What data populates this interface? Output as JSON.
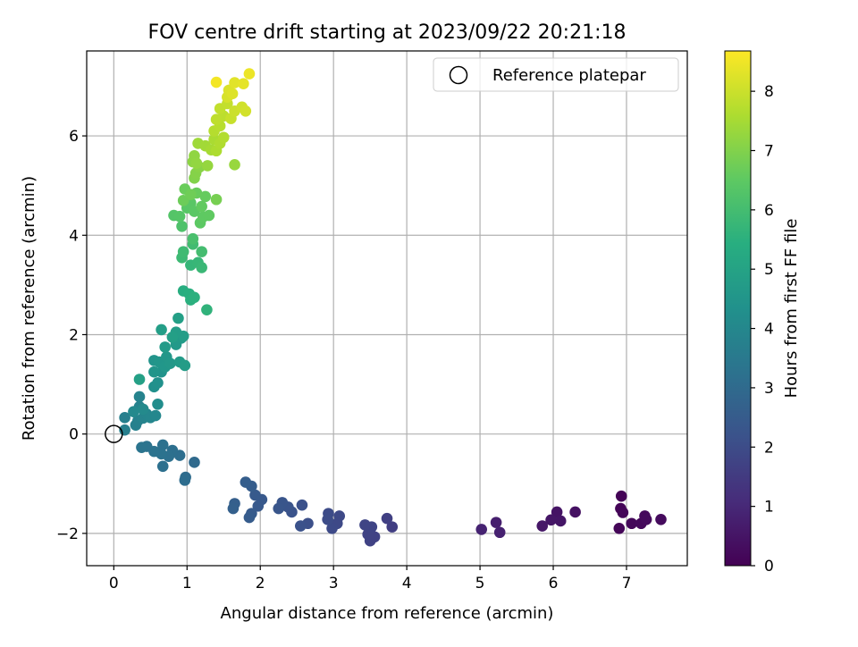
{
  "chart_data": {
    "type": "scatter",
    "title": "FOV centre drift starting at 2023/09/22 20:21:18",
    "xlabel": "Angular distance from reference (arcmin)",
    "ylabel": "Rotation from reference (arcmin)",
    "xlim": [
      -0.37,
      7.83
    ],
    "ylim": [
      -2.65,
      7.71
    ],
    "xticks": [
      0,
      1,
      2,
      3,
      4,
      5,
      6,
      7
    ],
    "yticks": [
      -2,
      0,
      2,
      4,
      6
    ],
    "xtick_labels": [
      "0",
      "1",
      "2",
      "3",
      "4",
      "5",
      "6",
      "7"
    ],
    "ytick_labels": [
      "−2",
      "0",
      "2",
      "4",
      "6"
    ],
    "grid": true,
    "legend": {
      "position": "top-right",
      "entries": [
        "Reference platepar"
      ]
    },
    "reference_point": {
      "name": "Reference platepar",
      "x": 0,
      "y": 0
    },
    "colorbar": {
      "label": "Hours from first FF file",
      "range": [
        0,
        8.68
      ],
      "ticks": [
        0,
        1,
        2,
        3,
        4,
        5,
        6,
        7,
        8
      ],
      "tick_labels": [
        "0",
        "1",
        "2",
        "3",
        "4",
        "5",
        "6",
        "7",
        "8"
      ],
      "colormap": "viridis"
    },
    "points": [
      {
        "x": 6.93,
        "y": -1.25,
        "c": 0.05
      },
      {
        "x": 6.92,
        "y": -1.5,
        "c": 0.08
      },
      {
        "x": 6.95,
        "y": -1.58,
        "c": 0.1
      },
      {
        "x": 6.9,
        "y": -1.9,
        "c": 0.12
      },
      {
        "x": 7.07,
        "y": -1.8,
        "c": 0.15
      },
      {
        "x": 7.2,
        "y": -1.8,
        "c": 0.18
      },
      {
        "x": 7.25,
        "y": -1.65,
        "c": 0.2
      },
      {
        "x": 7.27,
        "y": -1.72,
        "c": 0.22
      },
      {
        "x": 7.47,
        "y": -1.72,
        "c": 0.25
      },
      {
        "x": 6.3,
        "y": -1.57,
        "c": 0.4
      },
      {
        "x": 6.05,
        "y": -1.57,
        "c": 0.45
      },
      {
        "x": 6.1,
        "y": -1.75,
        "c": 0.5
      },
      {
        "x": 5.97,
        "y": -1.73,
        "c": 0.52
      },
      {
        "x": 5.85,
        "y": -1.85,
        "c": 0.55
      },
      {
        "x": 5.22,
        "y": -1.78,
        "c": 0.75
      },
      {
        "x": 5.27,
        "y": -1.98,
        "c": 0.8
      },
      {
        "x": 5.02,
        "y": -1.92,
        "c": 0.85
      },
      {
        "x": 3.8,
        "y": -1.87,
        "c": 1.6
      },
      {
        "x": 3.73,
        "y": -1.7,
        "c": 1.65
      },
      {
        "x": 3.56,
        "y": -2.07,
        "c": 1.7
      },
      {
        "x": 3.5,
        "y": -2.15,
        "c": 1.72
      },
      {
        "x": 3.47,
        "y": -2.02,
        "c": 1.75
      },
      {
        "x": 3.52,
        "y": -1.87,
        "c": 1.78
      },
      {
        "x": 3.43,
        "y": -1.83,
        "c": 1.8
      },
      {
        "x": 3.08,
        "y": -1.65,
        "c": 1.9
      },
      {
        "x": 3.05,
        "y": -1.8,
        "c": 1.92
      },
      {
        "x": 2.98,
        "y": -1.9,
        "c": 1.95
      },
      {
        "x": 2.93,
        "y": -1.6,
        "c": 1.97
      },
      {
        "x": 2.92,
        "y": -1.72,
        "c": 2.0
      },
      {
        "x": 2.65,
        "y": -1.8,
        "c": 2.1
      },
      {
        "x": 2.57,
        "y": -1.43,
        "c": 2.15
      },
      {
        "x": 2.55,
        "y": -1.85,
        "c": 2.18
      },
      {
        "x": 2.43,
        "y": -1.57,
        "c": 2.22
      },
      {
        "x": 2.38,
        "y": -1.47,
        "c": 2.25
      },
      {
        "x": 2.3,
        "y": -1.38,
        "c": 2.28
      },
      {
        "x": 2.25,
        "y": -1.5,
        "c": 2.3
      },
      {
        "x": 2.02,
        "y": -1.32,
        "c": 2.4
      },
      {
        "x": 1.97,
        "y": -1.45,
        "c": 2.42
      },
      {
        "x": 1.93,
        "y": -1.23,
        "c": 2.45
      },
      {
        "x": 1.88,
        "y": -1.6,
        "c": 2.48
      },
      {
        "x": 1.85,
        "y": -1.68,
        "c": 2.5
      },
      {
        "x": 1.88,
        "y": -1.05,
        "c": 2.55
      },
      {
        "x": 1.8,
        "y": -0.97,
        "c": 2.58
      },
      {
        "x": 1.65,
        "y": -1.4,
        "c": 2.62
      },
      {
        "x": 1.63,
        "y": -1.5,
        "c": 2.65
      },
      {
        "x": 1.1,
        "y": -0.57,
        "c": 3.0
      },
      {
        "x": 0.98,
        "y": -0.87,
        "c": 3.05
      },
      {
        "x": 0.97,
        "y": -0.93,
        "c": 3.08
      },
      {
        "x": 0.9,
        "y": -0.43,
        "c": 3.12
      },
      {
        "x": 0.8,
        "y": -0.33,
        "c": 3.15
      },
      {
        "x": 0.75,
        "y": -0.45,
        "c": 3.18
      },
      {
        "x": 0.67,
        "y": -0.65,
        "c": 3.2
      },
      {
        "x": 0.67,
        "y": -0.22,
        "c": 3.22
      },
      {
        "x": 0.65,
        "y": -0.4,
        "c": 3.25
      },
      {
        "x": 0.55,
        "y": -0.35,
        "c": 3.28
      },
      {
        "x": 0.45,
        "y": -0.25,
        "c": 3.3
      },
      {
        "x": 0.38,
        "y": -0.27,
        "c": 3.32
      },
      {
        "x": 0.15,
        "y": 0.08,
        "c": 3.7
      },
      {
        "x": 0.15,
        "y": 0.33,
        "c": 3.72
      },
      {
        "x": 0.3,
        "y": 0.18,
        "c": 3.75
      },
      {
        "x": 0.33,
        "y": 0.27,
        "c": 3.78
      },
      {
        "x": 0.35,
        "y": 0.55,
        "c": 3.8
      },
      {
        "x": 0.35,
        "y": 0.75,
        "c": 3.85
      },
      {
        "x": 0.4,
        "y": 0.32,
        "c": 3.88
      },
      {
        "x": 0.45,
        "y": 0.4,
        "c": 3.92
      },
      {
        "x": 0.5,
        "y": 0.33,
        "c": 3.95
      },
      {
        "x": 0.57,
        "y": 0.37,
        "c": 4.0
      },
      {
        "x": 0.27,
        "y": 0.45,
        "c": 4.05
      },
      {
        "x": 0.4,
        "y": 0.5,
        "c": 4.08
      },
      {
        "x": 0.6,
        "y": 0.6,
        "c": 4.2
      },
      {
        "x": 0.55,
        "y": 0.95,
        "c": 4.3
      },
      {
        "x": 0.6,
        "y": 1.03,
        "c": 4.35
      },
      {
        "x": 0.65,
        "y": 1.25,
        "c": 4.4
      },
      {
        "x": 0.55,
        "y": 1.48,
        "c": 4.45
      },
      {
        "x": 0.55,
        "y": 1.25,
        "c": 4.5
      },
      {
        "x": 0.62,
        "y": 1.45,
        "c": 4.52
      },
      {
        "x": 0.7,
        "y": 1.35,
        "c": 4.55
      },
      {
        "x": 0.72,
        "y": 1.55,
        "c": 4.58
      },
      {
        "x": 0.77,
        "y": 1.42,
        "c": 4.6
      },
      {
        "x": 0.85,
        "y": 1.8,
        "c": 4.65
      },
      {
        "x": 0.92,
        "y": 1.93,
        "c": 4.68
      },
      {
        "x": 0.7,
        "y": 1.75,
        "c": 4.7
      },
      {
        "x": 0.9,
        "y": 1.45,
        "c": 4.72
      },
      {
        "x": 0.97,
        "y": 1.38,
        "c": 4.75
      },
      {
        "x": 0.95,
        "y": 1.97,
        "c": 4.78
      },
      {
        "x": 0.85,
        "y": 2.05,
        "c": 4.8
      },
      {
        "x": 0.65,
        "y": 2.1,
        "c": 4.82
      },
      {
        "x": 0.88,
        "y": 2.33,
        "c": 4.85
      },
      {
        "x": 0.8,
        "y": 1.95,
        "c": 4.87
      },
      {
        "x": 0.35,
        "y": 1.1,
        "c": 4.9
      },
      {
        "x": 0.95,
        "y": 2.88,
        "c": 5.4
      },
      {
        "x": 1.03,
        "y": 2.82,
        "c": 5.45
      },
      {
        "x": 1.05,
        "y": 2.7,
        "c": 5.48
      },
      {
        "x": 1.1,
        "y": 2.75,
        "c": 5.5
      },
      {
        "x": 1.27,
        "y": 2.5,
        "c": 5.6
      },
      {
        "x": 1.05,
        "y": 3.4,
        "c": 5.7
      },
      {
        "x": 1.15,
        "y": 3.45,
        "c": 5.75
      },
      {
        "x": 1.2,
        "y": 3.35,
        "c": 5.8
      },
      {
        "x": 0.93,
        "y": 3.55,
        "c": 5.85
      },
      {
        "x": 0.95,
        "y": 3.67,
        "c": 5.9
      },
      {
        "x": 1.08,
        "y": 3.82,
        "c": 5.95
      },
      {
        "x": 1.2,
        "y": 3.67,
        "c": 6.0
      },
      {
        "x": 1.08,
        "y": 3.93,
        "c": 6.1
      },
      {
        "x": 0.93,
        "y": 4.18,
        "c": 6.2
      },
      {
        "x": 0.82,
        "y": 4.4,
        "c": 6.3
      },
      {
        "x": 0.9,
        "y": 4.38,
        "c": 6.33
      },
      {
        "x": 1.0,
        "y": 4.55,
        "c": 6.37
      },
      {
        "x": 1.05,
        "y": 4.65,
        "c": 6.4
      },
      {
        "x": 1.1,
        "y": 4.48,
        "c": 6.43
      },
      {
        "x": 1.18,
        "y": 4.25,
        "c": 6.46
      },
      {
        "x": 1.22,
        "y": 4.37,
        "c": 6.5
      },
      {
        "x": 1.3,
        "y": 4.4,
        "c": 6.53
      },
      {
        "x": 1.2,
        "y": 4.58,
        "c": 6.56
      },
      {
        "x": 1.25,
        "y": 4.78,
        "c": 6.6
      },
      {
        "x": 1.13,
        "y": 4.85,
        "c": 6.63
      },
      {
        "x": 0.97,
        "y": 4.93,
        "c": 6.66
      },
      {
        "x": 0.95,
        "y": 4.7,
        "c": 6.7
      },
      {
        "x": 1.05,
        "y": 4.82,
        "c": 6.75
      },
      {
        "x": 1.4,
        "y": 4.72,
        "c": 6.85
      },
      {
        "x": 1.1,
        "y": 5.15,
        "c": 7.0
      },
      {
        "x": 1.12,
        "y": 5.25,
        "c": 7.05
      },
      {
        "x": 1.17,
        "y": 5.37,
        "c": 7.1
      },
      {
        "x": 1.08,
        "y": 5.48,
        "c": 7.15
      },
      {
        "x": 1.1,
        "y": 5.6,
        "c": 7.2
      },
      {
        "x": 1.13,
        "y": 5.45,
        "c": 7.23
      },
      {
        "x": 1.28,
        "y": 5.4,
        "c": 7.26
      },
      {
        "x": 1.65,
        "y": 5.42,
        "c": 7.3
      },
      {
        "x": 1.15,
        "y": 5.85,
        "c": 7.4
      },
      {
        "x": 1.25,
        "y": 5.8,
        "c": 7.45
      },
      {
        "x": 1.33,
        "y": 5.72,
        "c": 7.5
      },
      {
        "x": 1.37,
        "y": 5.93,
        "c": 7.55
      },
      {
        "x": 1.4,
        "y": 5.7,
        "c": 7.6
      },
      {
        "x": 1.45,
        "y": 5.85,
        "c": 7.63
      },
      {
        "x": 1.5,
        "y": 5.97,
        "c": 7.66
      },
      {
        "x": 1.37,
        "y": 6.1,
        "c": 7.7
      },
      {
        "x": 1.45,
        "y": 6.2,
        "c": 7.75
      },
      {
        "x": 1.5,
        "y": 6.4,
        "c": 7.8
      },
      {
        "x": 1.4,
        "y": 6.33,
        "c": 7.83
      },
      {
        "x": 1.45,
        "y": 6.55,
        "c": 7.86
      },
      {
        "x": 1.55,
        "y": 6.65,
        "c": 7.9
      },
      {
        "x": 1.6,
        "y": 6.35,
        "c": 7.95
      },
      {
        "x": 1.65,
        "y": 6.5,
        "c": 8.0
      },
      {
        "x": 1.75,
        "y": 6.58,
        "c": 8.05
      },
      {
        "x": 1.8,
        "y": 6.5,
        "c": 8.1
      },
      {
        "x": 1.55,
        "y": 6.78,
        "c": 8.15
      },
      {
        "x": 1.57,
        "y": 6.92,
        "c": 8.2
      },
      {
        "x": 1.62,
        "y": 6.85,
        "c": 8.25
      },
      {
        "x": 1.65,
        "y": 7.07,
        "c": 8.3
      },
      {
        "x": 1.77,
        "y": 7.05,
        "c": 8.35
      },
      {
        "x": 1.85,
        "y": 7.25,
        "c": 8.45
      },
      {
        "x": 1.4,
        "y": 7.08,
        "c": 8.55
      }
    ]
  }
}
